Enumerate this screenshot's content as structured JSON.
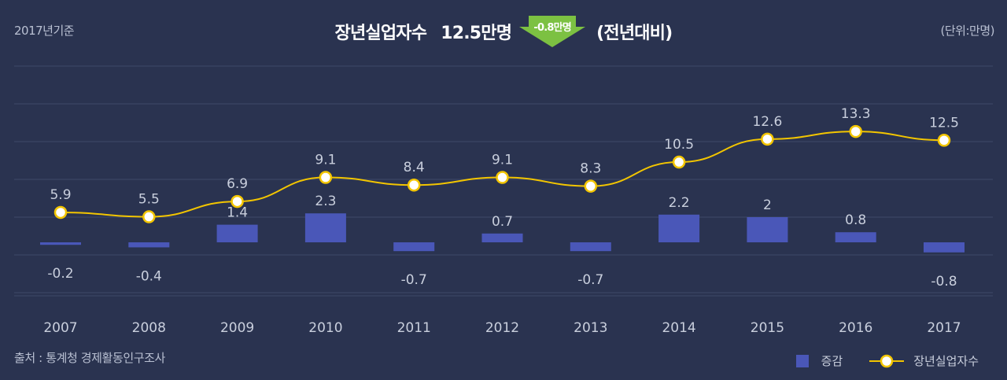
{
  "header": {
    "base_year": "2017년기준",
    "title": "장년실업자수",
    "value": "12.5만명",
    "change_badge": "-0.8만명",
    "compare": "(전년대비)",
    "unit": "(단위:만명)"
  },
  "footer": {
    "source": "출처 : 통계청 경제활동인구조사"
  },
  "colors": {
    "background": "#2a3350",
    "bar": "#4a57b8",
    "line": "#f2c500",
    "badge": "#7cc142"
  },
  "chart_data": {
    "type": "bar+line",
    "categories": [
      "2007",
      "2008",
      "2009",
      "2010",
      "2011",
      "2012",
      "2013",
      "2014",
      "2015",
      "2016",
      "2017"
    ],
    "series": [
      {
        "name": "증감",
        "type": "bar",
        "values": [
          -0.2,
          -0.4,
          1.4,
          2.3,
          -0.7,
          0.7,
          -0.7,
          2.2,
          2,
          0.8,
          -0.8
        ],
        "labels": [
          "-0.2",
          "-0.4",
          "1.4",
          "2.3",
          "-0.7",
          "0.7",
          "-0.7",
          "2.2",
          "2",
          "0.8",
          "-0.8"
        ]
      },
      {
        "name": "장년실업자수",
        "type": "line",
        "values": [
          5.9,
          5.5,
          6.9,
          9.1,
          8.4,
          9.1,
          8.3,
          10.5,
          12.6,
          13.3,
          12.5
        ],
        "labels": [
          "5.9",
          "5.5",
          "6.9",
          "9.1",
          "8.4",
          "9.1",
          "8.3",
          "10.5",
          "12.6",
          "13.3",
          "12.5"
        ]
      }
    ],
    "legend_position": "bottom-right",
    "grid": true
  }
}
